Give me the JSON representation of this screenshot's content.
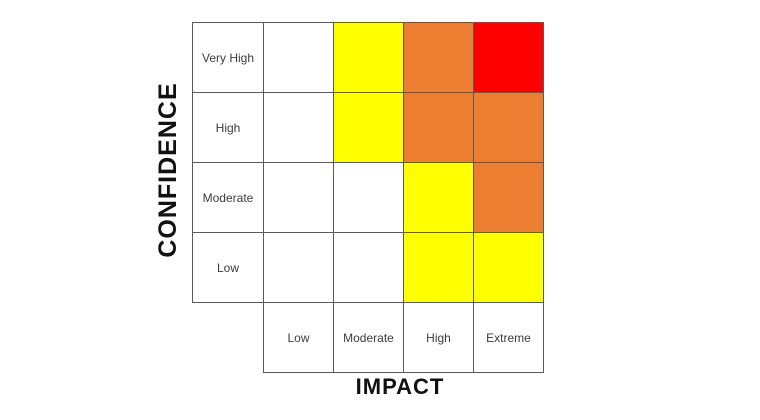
{
  "chart_data": {
    "type": "heatmap",
    "title": "",
    "x_axis_label": "IMPACT",
    "y_axis_label": "CONFIDENCE",
    "x_categories": [
      "Low",
      "Moderate",
      "High",
      "Extreme"
    ],
    "y_categories": [
      "Very High",
      "High",
      "Moderate",
      "Low"
    ],
    "legend": "none",
    "grid": "on",
    "border_color": "#5a5a5a",
    "cell_colors": {
      "white": "#ffffff",
      "yellow": "#ffff00",
      "orange": "#ed7d31",
      "red": "#ff0000"
    },
    "rows": [
      {
        "label": "Very High",
        "cells": [
          "white",
          "yellow",
          "orange",
          "red"
        ]
      },
      {
        "label": "High",
        "cells": [
          "white",
          "yellow",
          "orange",
          "orange"
        ]
      },
      {
        "label": "Moderate",
        "cells": [
          "white",
          "white",
          "yellow",
          "orange"
        ]
      },
      {
        "label": "Low",
        "cells": [
          "white",
          "white",
          "yellow",
          "yellow"
        ]
      }
    ]
  }
}
